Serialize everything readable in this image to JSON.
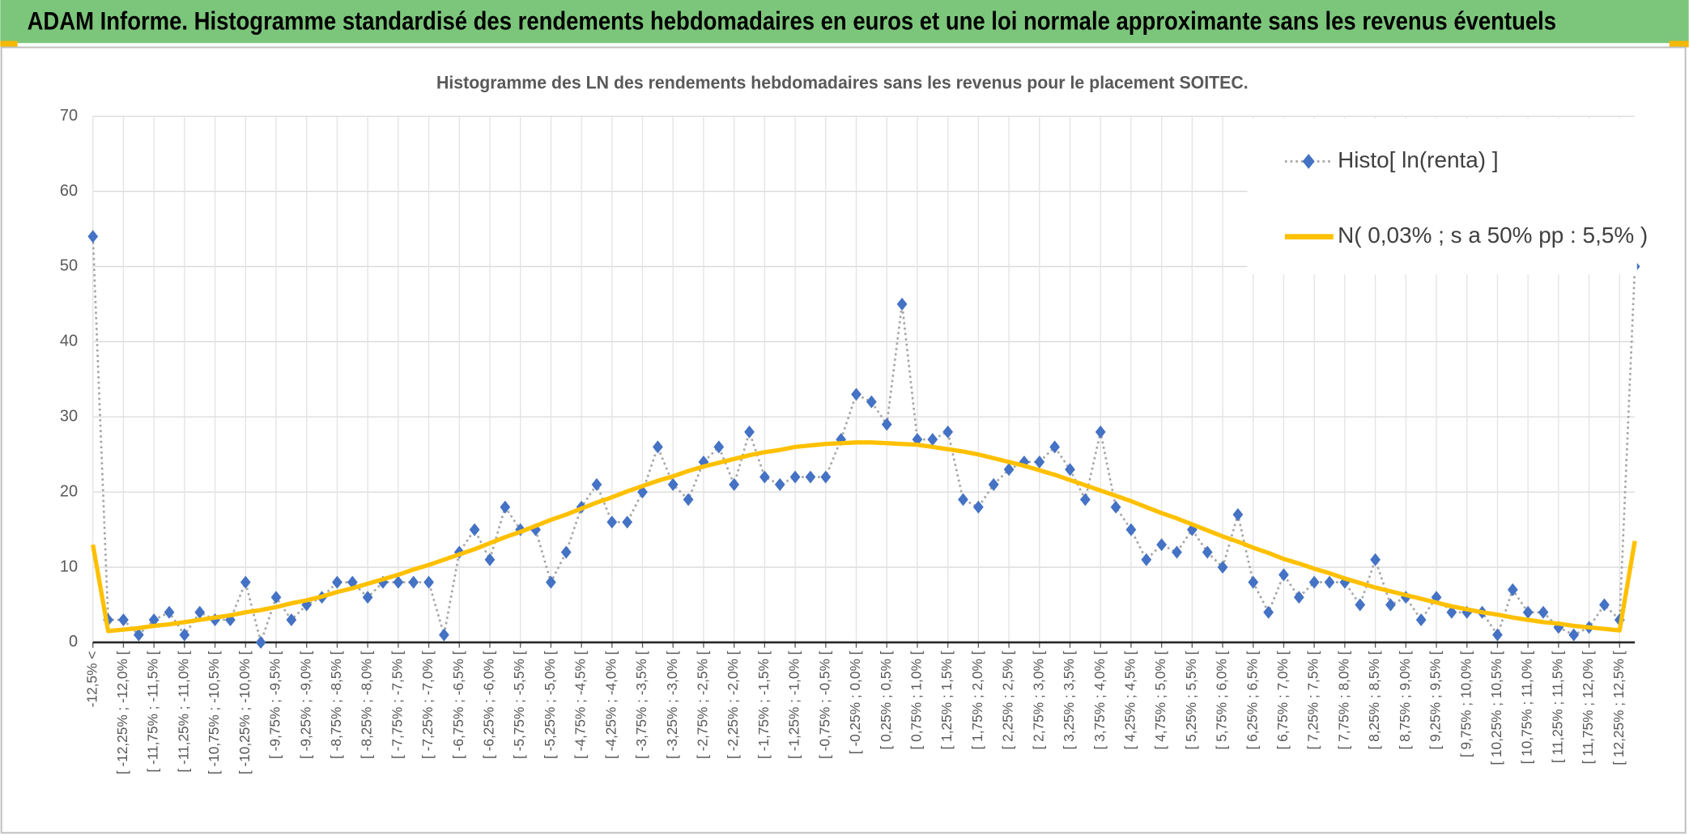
{
  "header": {
    "title": "ADAM Informe. Histogramme standardisé des rendements hebdomadaires en euros et une loi normale approximante sans les revenus éventuels"
  },
  "chart_data": {
    "type": "line",
    "title": "Histogramme des LN des rendements hebdomadaires sans les revenus pour le placement SOITEC.",
    "categories": [
      "-12,5% <",
      null,
      "[ -12,25% ; -12,0% [",
      null,
      "[ -11,75% ; -11,5% [",
      null,
      "[ -11,25% ; -11,0% [",
      null,
      "[ -10,75% ; -10,5% [",
      null,
      "[ -10,25% ; -10,0% [",
      null,
      "[ -9,75% ; -9,5% [",
      null,
      "[ -9,25% ; -9,0% [",
      null,
      "[ -8,75% ; -8,5% [",
      null,
      "[ -8,25% ; -8,0% [",
      null,
      "[ -7,75% ; -7,5% [",
      null,
      "[ -7,25% ; -7,0% [",
      null,
      "[ -6,75% ; -6,5% [",
      null,
      "[ -6,25% ; -6,0% [",
      null,
      "[ -5,75% ; -5,5% [",
      null,
      "[ -5,25% ; -5,0% [",
      null,
      "[ -4,75% ; -4,5% [",
      null,
      "[ -4,25% ; -4,0% [",
      null,
      "[ -3,75% ; -3,5% [",
      null,
      "[ -3,25% ; -3,0% [",
      null,
      "[ -2,75% ; -2,5% [",
      null,
      "[ -2,25% ; -2,0% [",
      null,
      "[ -1,75% ; -1,5% [",
      null,
      "[ -1,25% ; -1,0% [",
      null,
      "[ -0,75% ; -0,5% [",
      null,
      "[ -0,25% ; 0,0% [",
      null,
      "[ 0,25% ; 0,5% [",
      null,
      "[ 0,75% ; 1,0% [",
      null,
      "[ 1,25% ; 1,5% [",
      null,
      "[ 1,75% ; 2,0% [",
      null,
      "[ 2,25% ; 2,5% [",
      null,
      "[ 2,75% ; 3,0% [",
      null,
      "[ 3,25% ; 3,5% [",
      null,
      "[ 3,75% ; 4,0% [",
      null,
      "[ 4,25% ; 4,5% [",
      null,
      "[ 4,75% ; 5,0% [",
      null,
      "[ 5,25% ; 5,5% [",
      null,
      "[ 5,75% ; 6,0% [",
      null,
      "[ 6,25% ; 6,5% [",
      null,
      "[ 6,75% ; 7,0% [",
      null,
      "[ 7,25% ; 7,5% [",
      null,
      "[ 7,75% ; 8,0% [",
      null,
      "[ 8,25% ; 8,5% [",
      null,
      "[ 8,75% ; 9,0% [",
      null,
      "[ 9,25% ; 9,5% [",
      null,
      "[ 9,75% ; 10,0% [",
      null,
      "[ 10,25% ; 10,5% [",
      null,
      "[ 10,75% ; 11,0% [",
      null,
      "[ 11,25% ; 11,5% [",
      null,
      "[ 11,75% ; 12,0% [",
      null,
      "[ 12,25% ; 12,5% [",
      null
    ],
    "series": [
      {
        "name": "Histo[ ln(renta) ]",
        "color": "#4472c4",
        "line_color": "#a5a5a5",
        "marker": "diamond",
        "values": [
          54,
          3,
          3,
          1,
          3,
          4,
          1,
          4,
          3,
          3,
          8,
          0,
          6,
          3,
          5,
          6,
          8,
          8,
          6,
          8,
          8,
          8,
          8,
          1,
          12,
          15,
          11,
          18,
          15,
          15,
          8,
          12,
          18,
          21,
          16,
          16,
          20,
          26,
          21,
          19,
          24,
          26,
          21,
          28,
          22,
          21,
          22,
          22,
          22,
          27,
          33,
          32,
          29,
          45,
          27,
          27,
          28,
          19,
          18,
          21,
          23,
          24,
          24,
          26,
          23,
          19,
          28,
          18,
          15,
          11,
          13,
          12,
          15,
          12,
          10,
          17,
          8,
          4,
          9,
          6,
          8,
          8,
          8,
          5,
          11,
          5,
          6,
          3,
          6,
          4,
          4,
          4,
          1,
          7,
          4,
          4,
          2,
          1,
          2,
          5,
          3,
          50
        ]
      },
      {
        "name": "N( 0,03% ; s a 50% pp : 5,5% )",
        "color": "#ffc000",
        "values": [
          13,
          1.5,
          1.7,
          1.9,
          2.2,
          2.4,
          2.7,
          3.0,
          3.3,
          3.6,
          4.0,
          4.3,
          4.7,
          5.2,
          5.6,
          6.1,
          6.7,
          7.2,
          7.8,
          8.4,
          9.0,
          9.7,
          10.3,
          11.0,
          11.7,
          12.4,
          13.2,
          14.0,
          14.7,
          15.5,
          16.3,
          17.0,
          17.8,
          18.6,
          19.3,
          20.1,
          20.8,
          21.5,
          22.1,
          22.8,
          23.4,
          23.9,
          24.4,
          24.9,
          25.3,
          25.6,
          26.0,
          26.2,
          26.4,
          26.5,
          26.6,
          26.6,
          26.5,
          26.4,
          26.3,
          26.0,
          25.7,
          25.4,
          25.0,
          24.5,
          24.0,
          23.5,
          22.9,
          22.3,
          21.6,
          20.9,
          20.2,
          19.5,
          18.8,
          18.0,
          17.2,
          16.5,
          15.7,
          14.9,
          14.1,
          13.4,
          12.6,
          11.9,
          11.1,
          10.5,
          9.8,
          9.2,
          8.5,
          7.9,
          7.3,
          6.8,
          6.3,
          5.8,
          5.3,
          4.8,
          4.4,
          4.0,
          3.7,
          3.3,
          3.0,
          2.7,
          2.5,
          2.2,
          2.0,
          1.8,
          1.6,
          13.5
        ]
      }
    ],
    "ylim": [
      0,
      70
    ],
    "yticks": [
      0,
      10,
      20,
      30,
      40,
      50,
      60,
      70
    ],
    "grid": true,
    "legend": "upper right"
  }
}
